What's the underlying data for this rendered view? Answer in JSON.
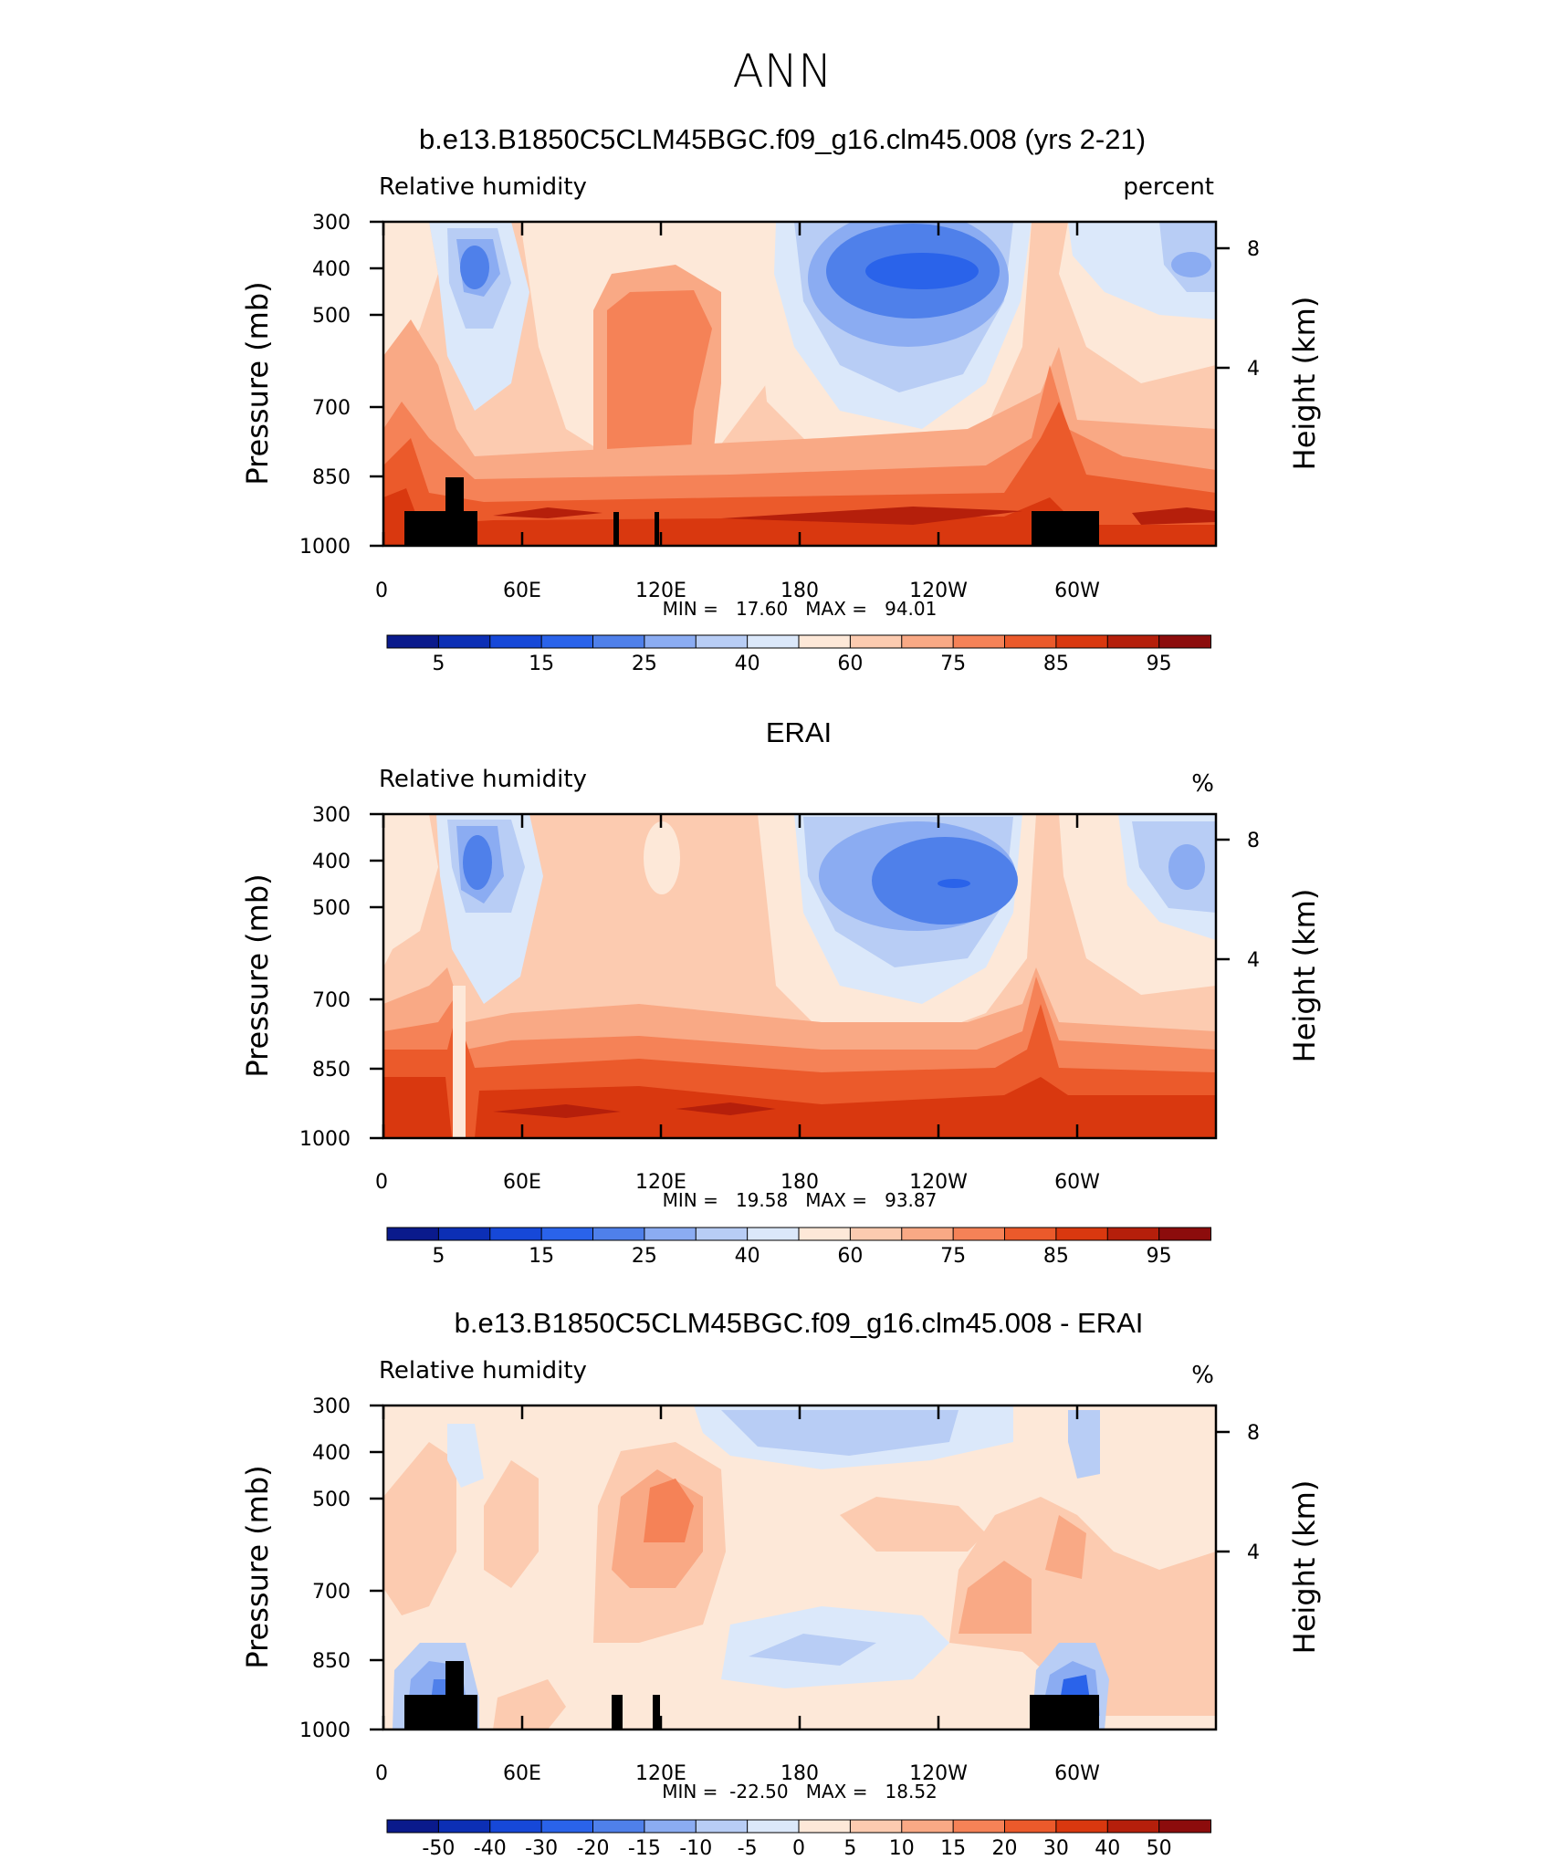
{
  "page_title": "ANN",
  "chart_data": [
    {
      "type": "contour",
      "title": "b.e13.B1850C5CLM45BGC.f09_g16.clm45.008 (yrs 2-21)",
      "subtitle_left": "Relative humidity",
      "subtitle_right": "percent",
      "ylabel": "Pressure (mb)",
      "ylabel_right": "Height (km)",
      "x_ticks": [
        "0",
        "60E",
        "120E",
        "180",
        "120W",
        "60W"
      ],
      "y_ticks": [
        "300",
        "400",
        "500",
        "700",
        "850",
        "1000"
      ],
      "y_ticks_right": [
        "8",
        "4"
      ],
      "ylim": [
        1000,
        300
      ],
      "stats_text": "MIN =   17.60   MAX =   94.01",
      "min": 17.6,
      "max": 94.01,
      "has_topography_mask": true,
      "colorbar": {
        "labels": [
          "5",
          "15",
          "25",
          "40",
          "60",
          "75",
          "85",
          "95"
        ],
        "colors": [
          "#0a1a8c",
          "#0c2fb5",
          "#1648d8",
          "#2a63ea",
          "#4f80ea",
          "#8bacf2",
          "#b8cdf5",
          "#dbe8fa",
          "#fde8d8",
          "#fccbb0",
          "#f9a985",
          "#f58257",
          "#eb5a2b",
          "#d9380f",
          "#b51f0b",
          "#8c0c0c"
        ]
      }
    },
    {
      "type": "contour",
      "title": "ERAI",
      "subtitle_left": "Relative humidity",
      "subtitle_right": "%",
      "ylabel": "Pressure (mb)",
      "ylabel_right": "Height (km)",
      "x_ticks": [
        "0",
        "60E",
        "120E",
        "180",
        "120W",
        "60W"
      ],
      "y_ticks": [
        "300",
        "400",
        "500",
        "700",
        "850",
        "1000"
      ],
      "y_ticks_right": [
        "8",
        "4"
      ],
      "ylim": [
        1000,
        300
      ],
      "stats_text": "MIN =   19.58   MAX =   93.87",
      "min": 19.58,
      "max": 93.87,
      "has_topography_mask": false,
      "colorbar": {
        "labels": [
          "5",
          "15",
          "25",
          "40",
          "60",
          "75",
          "85",
          "95"
        ],
        "colors": [
          "#0a1a8c",
          "#0c2fb5",
          "#1648d8",
          "#2a63ea",
          "#4f80ea",
          "#8bacf2",
          "#b8cdf5",
          "#dbe8fa",
          "#fde8d8",
          "#fccbb0",
          "#f9a985",
          "#f58257",
          "#eb5a2b",
          "#d9380f",
          "#b51f0b",
          "#8c0c0c"
        ]
      }
    },
    {
      "type": "contour",
      "title": "b.e13.B1850C5CLM45BGC.f09_g16.clm45.008 - ERAI",
      "subtitle_left": "Relative humidity",
      "subtitle_right": "%",
      "ylabel": "Pressure (mb)",
      "ylabel_right": "Height (km)",
      "x_ticks": [
        "0",
        "60E",
        "120E",
        "180",
        "120W",
        "60W"
      ],
      "y_ticks": [
        "300",
        "400",
        "500",
        "700",
        "850",
        "1000"
      ],
      "y_ticks_right": [
        "8",
        "4"
      ],
      "ylim": [
        1000,
        300
      ],
      "stats_text": "MIN =  -22.50   MAX =   18.52",
      "min": -22.5,
      "max": 18.52,
      "has_topography_mask": true,
      "colorbar": {
        "labels": [
          "-50",
          "-40",
          "-30",
          "-20",
          "-15",
          "-10",
          "-5",
          "0",
          "5",
          "10",
          "15",
          "20",
          "30",
          "40",
          "50"
        ],
        "colors": [
          "#0a1a8c",
          "#0c2fb5",
          "#1648d8",
          "#2a63ea",
          "#4f80ea",
          "#8bacf2",
          "#b8cdf5",
          "#dbe8fa",
          "#fde8d8",
          "#fccbb0",
          "#f9a985",
          "#f58257",
          "#eb5a2b",
          "#d9380f",
          "#b51f0b",
          "#8c0c0c"
        ]
      }
    }
  ]
}
